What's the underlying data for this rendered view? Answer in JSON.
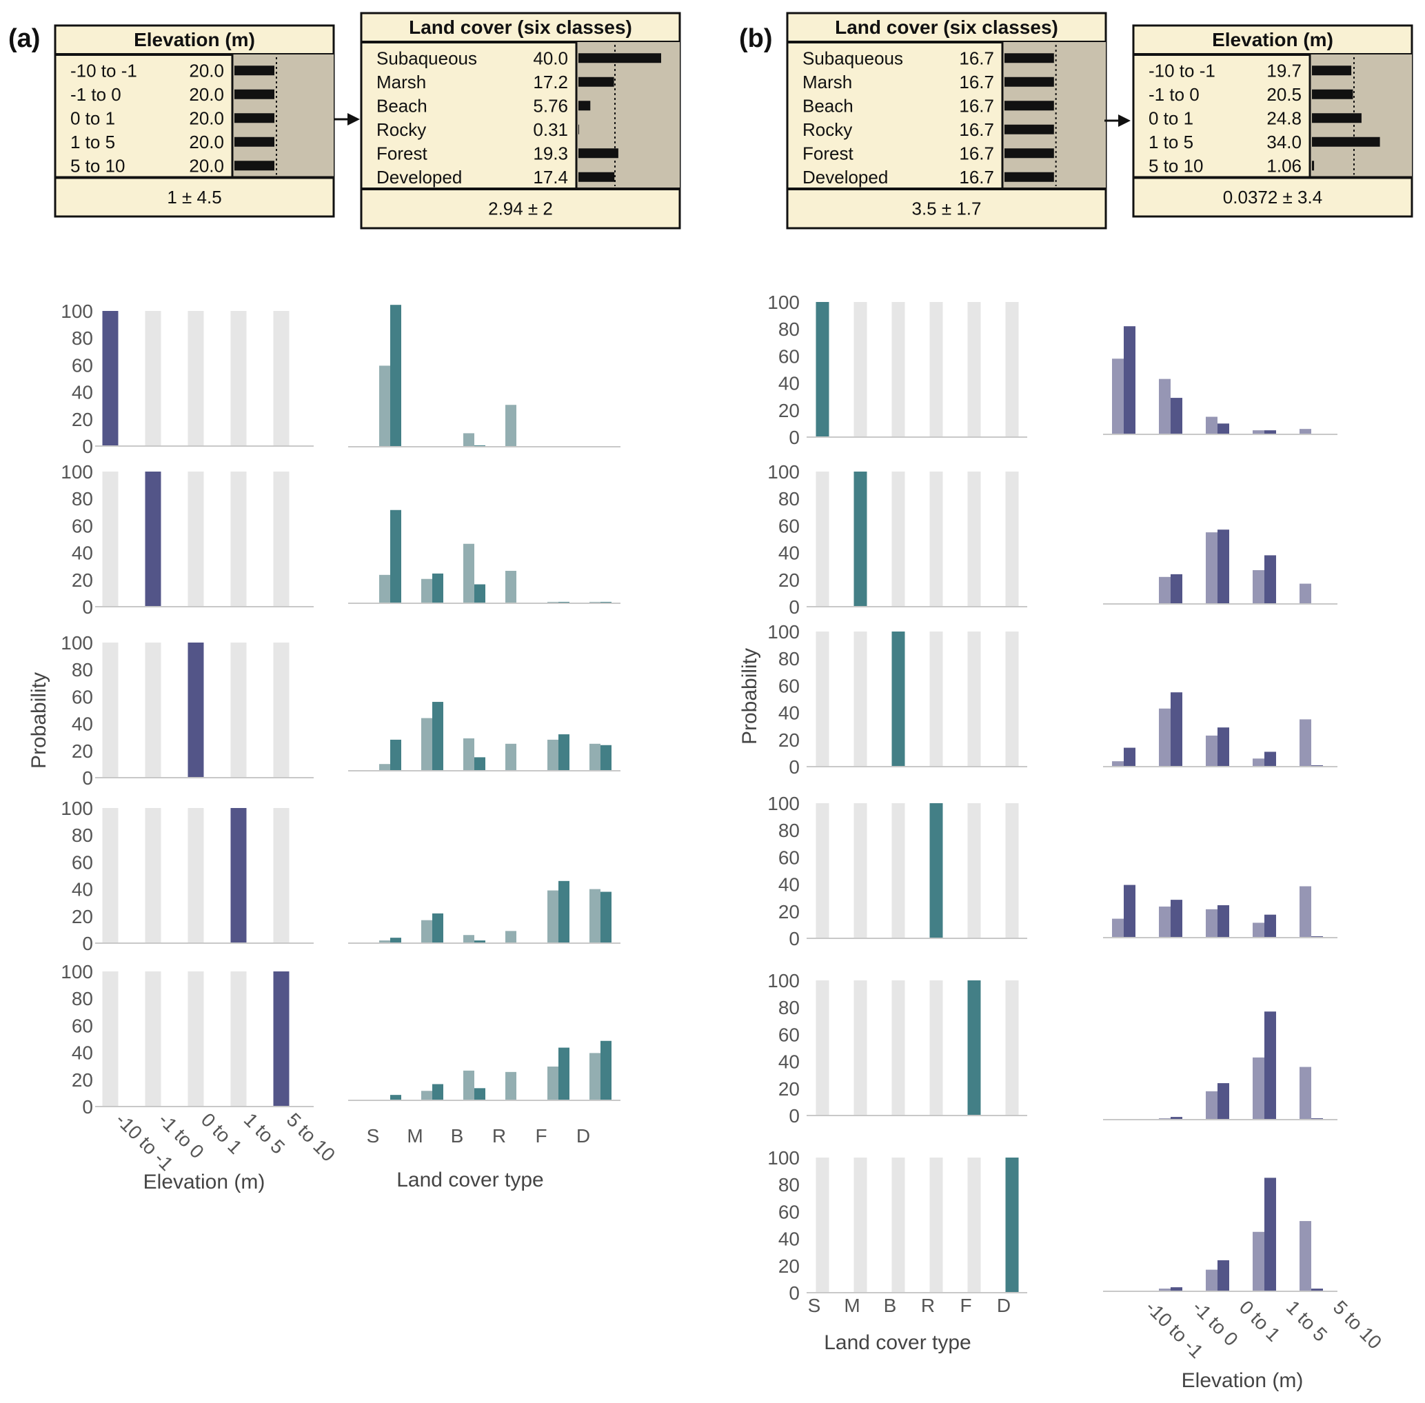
{
  "colors": {
    "net_bg": "#f9f1d3",
    "net_bar_panel": "#c9c1ad",
    "net_border": "#111111",
    "grey_bar": "#e6e6e6",
    "elev_bar": "#535588",
    "elev_prior": "#9696b4",
    "lc_bar": "#437f86",
    "lc_prior": "#93aeb1",
    "axis_line": "#c8c8c8"
  },
  "panels": {
    "a": "(a)",
    "b": "(b)"
  },
  "net_nodes": {
    "a_elev": {
      "title": "Elevation (m)",
      "footer": "1 ± 4.5",
      "rows": [
        {
          "label": "-10 to -1",
          "value": "20.0"
        },
        {
          "label": "-1 to 0",
          "value": "20.0"
        },
        {
          "label": "0 to 1",
          "value": "20.0"
        },
        {
          "label": "1 to 5",
          "value": "20.0"
        },
        {
          "label": "5 to 10",
          "value": "20.0"
        }
      ]
    },
    "a_lc": {
      "title": "Land cover (six classes)",
      "footer": "2.94 ± 2",
      "rows": [
        {
          "label": "Subaqueous",
          "value": "40.0"
        },
        {
          "label": "Marsh",
          "value": "17.2"
        },
        {
          "label": "Beach",
          "value": "5.76"
        },
        {
          "label": "Rocky",
          "value": "0.31"
        },
        {
          "label": "Forest",
          "value": "19.3"
        },
        {
          "label": "Developed",
          "value": "17.4"
        }
      ]
    },
    "b_lc": {
      "title": "Land cover (six classes)",
      "footer": "3.5 ± 1.7",
      "rows": [
        {
          "label": "Subaqueous",
          "value": "16.7"
        },
        {
          "label": "Marsh",
          "value": "16.7"
        },
        {
          "label": "Beach",
          "value": "16.7"
        },
        {
          "label": "Rocky",
          "value": "16.7"
        },
        {
          "label": "Forest",
          "value": "16.7"
        },
        {
          "label": "Developed",
          "value": "16.7"
        }
      ]
    },
    "b_elev": {
      "title": "Elevation (m)",
      "footer": "0.0372 ± 3.4",
      "rows": [
        {
          "label": "-10 to -1",
          "value": "19.7"
        },
        {
          "label": "-1 to 0",
          "value": "20.5"
        },
        {
          "label": "0 to 1",
          "value": "24.8"
        },
        {
          "label": "1 to 5",
          "value": "34.0"
        },
        {
          "label": "5 to 10",
          "value": "1.06"
        }
      ]
    }
  },
  "chart_data": {
    "type": "bar",
    "ylabel": "Probability",
    "ylim": [
      0,
      100
    ],
    "yticks": [
      "0",
      "20",
      "40",
      "60",
      "80",
      "100"
    ],
    "elevation_categories": [
      "-10 to -1",
      "-1 to 0",
      "0 to 1",
      "1 to 5",
      "5 to 10"
    ],
    "landcover_categories": [
      "S",
      "M",
      "B",
      "R",
      "F",
      "D"
    ],
    "elevation_xlabel": "Elevation (m)",
    "landcover_xlabel": "Land cover type",
    "a_evidence_elevation": [
      0,
      1,
      2,
      3,
      4
    ],
    "a_landcover": [
      {
        "prior": [
          60,
          0.5,
          10,
          31,
          0,
          0.5
        ],
        "posterior": [
          105,
          0,
          1,
          0,
          0,
          0
        ]
      },
      {
        "prior": [
          21,
          18,
          44,
          24,
          1,
          1
        ],
        "posterior": [
          69,
          22,
          14,
          0,
          1,
          1
        ]
      },
      {
        "prior": [
          5,
          39,
          24,
          20,
          23,
          20
        ],
        "posterior": [
          23,
          51,
          10,
          0,
          27,
          19
        ]
      },
      {
        "prior": [
          2,
          17,
          6,
          9,
          39,
          40
        ],
        "posterior": [
          4,
          22,
          2,
          0,
          46,
          38
        ]
      },
      {
        "prior": [
          0,
          7,
          22,
          21,
          25,
          35
        ],
        "posterior": [
          4,
          12,
          9,
          0,
          39,
          44
        ]
      }
    ],
    "b_evidence_landcover": [
      0,
      1,
      2,
      3,
      4,
      5
    ],
    "b_elevation": [
      {
        "prior": [
          56,
          41,
          13,
          3,
          4
        ],
        "posterior": [
          80,
          27,
          8,
          3,
          0
        ]
      },
      {
        "prior": [
          0,
          20,
          53,
          25,
          15
        ],
        "posterior": [
          0,
          22,
          55,
          36,
          0
        ]
      },
      {
        "prior": [
          4,
          43,
          23,
          6,
          35
        ],
        "posterior": [
          14,
          55,
          29,
          11,
          1
        ]
      },
      {
        "prior": [
          14,
          23,
          21,
          11,
          38
        ],
        "posterior": [
          39,
          28,
          24,
          17,
          1
        ]
      },
      {
        "prior": [
          0,
          1,
          21,
          46,
          39
        ],
        "posterior": [
          0,
          2,
          27,
          80,
          1
        ]
      },
      {
        "prior": [
          0,
          2,
          16,
          44,
          52
        ],
        "posterior": [
          0,
          3,
          23,
          84,
          2
        ]
      }
    ]
  }
}
